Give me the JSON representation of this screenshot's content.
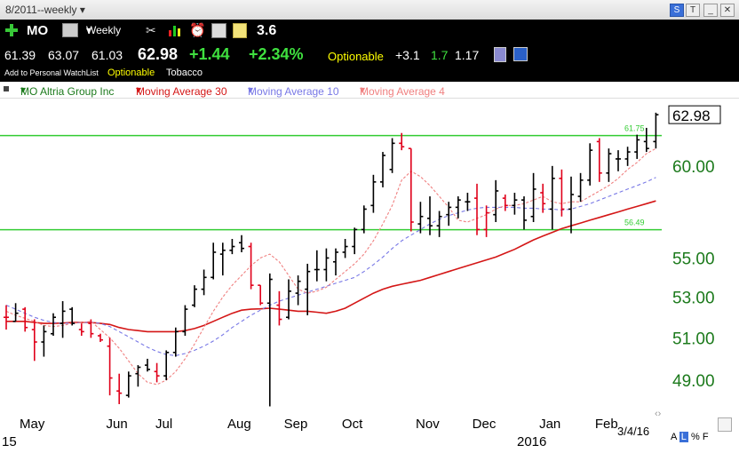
{
  "window": {
    "title": "8/2011--weekly"
  },
  "quote": {
    "symbol": "MO",
    "interval": "Weekly",
    "score": "3.6",
    "open": "61.39",
    "high": "63.07",
    "low": "61.03",
    "last": "62.98",
    "change": "+1.44",
    "change_pct": "+2.34%",
    "optionable": "Optionable",
    "rs1": "+3.1",
    "rs2": "1.7",
    "rs3": "1.17",
    "watchlist_link": "Add to Personal WatchList",
    "industry_tag": "Optionable",
    "industry": "Tobacco"
  },
  "legend": {
    "symbol_series": "MO Altria Group Inc",
    "ma30": "Moving Average 30",
    "ma10": "Moving Average 10",
    "ma4": "Moving Average 4"
  },
  "colors": {
    "up_bar": "#000000",
    "down_bar": "#e0001a",
    "ma30": "#d41616",
    "ma10": "#7878e6",
    "ma4": "#f08080",
    "support_lines": "#33cc33",
    "axis_text": "#1c7a1c"
  },
  "footer": {
    "date": "3/4/16",
    "scale_buttons": [
      "A",
      "L",
      "%",
      "F"
    ],
    "year_left": "15",
    "year_mid": "2016"
  },
  "chart_data": {
    "type": "ohlc",
    "title": "MO Altria Group Inc",
    "x_axis_labels": [
      "May",
      "Jun",
      "Jul",
      "Aug",
      "Sep",
      "Oct",
      "Nov",
      "Dec",
      "Jan",
      "Feb"
    ],
    "x_axis_label_week_index": [
      2,
      11,
      16,
      24,
      30,
      36,
      44,
      50,
      57,
      63
    ],
    "y_axis_ticks": [
      49.0,
      51.0,
      53.0,
      55.0,
      60.0
    ],
    "scale": "log",
    "ylim": [
      47.5,
      64.0
    ],
    "last_price_label": "62.98",
    "horizontal_lines": [
      {
        "label": "61.75",
        "value": 61.75
      },
      {
        "label": "56.49",
        "value": 56.49
      }
    ],
    "bars": [
      {
        "o": 52.0,
        "h": 52.6,
        "l": 51.4,
        "c": 52.0,
        "dir": "down"
      },
      {
        "o": 51.8,
        "h": 52.7,
        "l": 51.8,
        "c": 52.2,
        "dir": "up"
      },
      {
        "o": 52.4,
        "h": 52.5,
        "l": 51.3,
        "c": 51.5,
        "dir": "down"
      },
      {
        "o": 51.4,
        "h": 51.9,
        "l": 49.9,
        "c": 50.8,
        "dir": "down"
      },
      {
        "o": 50.8,
        "h": 51.6,
        "l": 50.1,
        "c": 51.3,
        "dir": "up"
      },
      {
        "o": 51.2,
        "h": 52.2,
        "l": 51.1,
        "c": 52.0,
        "dir": "up"
      },
      {
        "o": 51.7,
        "h": 52.8,
        "l": 51.0,
        "c": 52.3,
        "dir": "up"
      },
      {
        "o": 52.4,
        "h": 52.5,
        "l": 51.6,
        "c": 51.7,
        "dir": "up"
      },
      {
        "o": 51.4,
        "h": 51.7,
        "l": 51.1,
        "c": 51.3,
        "dir": "down"
      },
      {
        "o": 51.7,
        "h": 51.9,
        "l": 51.0,
        "c": 51.2,
        "dir": "down"
      },
      {
        "o": 51.1,
        "h": 51.2,
        "l": 50.8,
        "c": 50.9,
        "dir": "down"
      },
      {
        "o": 50.6,
        "h": 51.0,
        "l": 48.3,
        "c": 49.1,
        "dir": "down"
      },
      {
        "o": 48.5,
        "h": 49.3,
        "l": 47.9,
        "c": 48.4,
        "dir": "red"
      },
      {
        "o": 48.3,
        "h": 49.4,
        "l": 48.2,
        "c": 49.2,
        "dir": "up"
      },
      {
        "o": 49.3,
        "h": 49.7,
        "l": 48.7,
        "c": 49.6,
        "dir": "up"
      },
      {
        "o": 49.7,
        "h": 50.0,
        "l": 49.4,
        "c": 49.5,
        "dir": "up"
      },
      {
        "o": 49.4,
        "h": 49.8,
        "l": 48.9,
        "c": 49.2,
        "dir": "down"
      },
      {
        "o": 49.2,
        "h": 50.4,
        "l": 49.0,
        "c": 50.3,
        "dir": "up"
      },
      {
        "o": 50.3,
        "h": 51.5,
        "l": 50.1,
        "c": 51.3,
        "dir": "up"
      },
      {
        "o": 51.3,
        "h": 52.6,
        "l": 51.1,
        "c": 52.4,
        "dir": "up"
      },
      {
        "o": 52.6,
        "h": 53.6,
        "l": 52.5,
        "c": 53.4,
        "dir": "up"
      },
      {
        "o": 53.4,
        "h": 54.4,
        "l": 53.1,
        "c": 54.0,
        "dir": "up"
      },
      {
        "o": 54.0,
        "h": 55.8,
        "l": 53.9,
        "c": 55.3,
        "dir": "up"
      },
      {
        "o": 55.2,
        "h": 55.8,
        "l": 54.1,
        "c": 55.4,
        "dir": "up"
      },
      {
        "o": 55.4,
        "h": 56.0,
        "l": 55.2,
        "c": 55.6,
        "dir": "up"
      },
      {
        "o": 55.8,
        "h": 56.2,
        "l": 55.3,
        "c": 55.5,
        "dir": "up"
      },
      {
        "o": 55.6,
        "h": 55.8,
        "l": 53.4,
        "c": 53.6,
        "dir": "down"
      },
      {
        "o": 53.6,
        "h": 53.6,
        "l": 52.6,
        "c": 52.7,
        "dir": "down"
      },
      {
        "o": 52.7,
        "h": 54.2,
        "l": 47.8,
        "c": 53.9,
        "dir": "up"
      },
      {
        "o": 52.6,
        "h": 53.3,
        "l": 51.6,
        "c": 51.9,
        "dir": "down"
      },
      {
        "o": 52.0,
        "h": 53.9,
        "l": 51.9,
        "c": 53.3,
        "dir": "up"
      },
      {
        "o": 53.2,
        "h": 54.1,
        "l": 52.6,
        "c": 53.8,
        "dir": "up"
      },
      {
        "o": 53.4,
        "h": 54.7,
        "l": 52.1,
        "c": 54.3,
        "dir": "up"
      },
      {
        "o": 54.4,
        "h": 55.4,
        "l": 53.8,
        "c": 54.4,
        "dir": "up"
      },
      {
        "o": 54.4,
        "h": 55.5,
        "l": 53.8,
        "c": 55.0,
        "dir": "up"
      },
      {
        "o": 54.8,
        "h": 55.5,
        "l": 54.1,
        "c": 55.3,
        "dir": "up"
      },
      {
        "o": 55.3,
        "h": 56.0,
        "l": 55.0,
        "c": 55.6,
        "dir": "up"
      },
      {
        "o": 55.6,
        "h": 56.6,
        "l": 55.2,
        "c": 56.5,
        "dir": "up"
      },
      {
        "o": 56.5,
        "h": 57.8,
        "l": 56.3,
        "c": 57.6,
        "dir": "up"
      },
      {
        "o": 57.8,
        "h": 59.5,
        "l": 57.4,
        "c": 59.1,
        "dir": "up"
      },
      {
        "o": 59.1,
        "h": 60.8,
        "l": 58.8,
        "c": 60.6,
        "dir": "up"
      },
      {
        "o": 59.8,
        "h": 61.6,
        "l": 59.6,
        "c": 61.3,
        "dir": "up"
      },
      {
        "o": 61.3,
        "h": 61.9,
        "l": 60.9,
        "c": 61.1,
        "dir": "red"
      },
      {
        "o": 61.0,
        "h": 61.0,
        "l": 56.4,
        "c": 56.9,
        "dir": "down"
      },
      {
        "o": 56.8,
        "h": 58.0,
        "l": 56.3,
        "c": 57.2,
        "dir": "up"
      },
      {
        "o": 57.1,
        "h": 58.3,
        "l": 56.2,
        "c": 56.7,
        "dir": "up"
      },
      {
        "o": 56.7,
        "h": 57.5,
        "l": 56.1,
        "c": 57.2,
        "dir": "up"
      },
      {
        "o": 57.3,
        "h": 58.0,
        "l": 56.7,
        "c": 57.7,
        "dir": "up"
      },
      {
        "o": 57.7,
        "h": 58.3,
        "l": 57.1,
        "c": 58.1,
        "dir": "up"
      },
      {
        "o": 58.0,
        "h": 58.5,
        "l": 57.5,
        "c": 58.0,
        "dir": "up"
      },
      {
        "o": 58.2,
        "h": 59.0,
        "l": 56.2,
        "c": 56.5,
        "dir": "down"
      },
      {
        "o": 56.5,
        "h": 57.8,
        "l": 56.1,
        "c": 57.4,
        "dir": "down"
      },
      {
        "o": 57.3,
        "h": 59.2,
        "l": 56.9,
        "c": 58.6,
        "dir": "up"
      },
      {
        "o": 58.2,
        "h": 58.4,
        "l": 57.5,
        "c": 57.8,
        "dir": "down"
      },
      {
        "o": 57.8,
        "h": 58.5,
        "l": 57.3,
        "c": 58.1,
        "dir": "up"
      },
      {
        "o": 58.1,
        "h": 58.3,
        "l": 56.5,
        "c": 57.0,
        "dir": "up"
      },
      {
        "o": 57.2,
        "h": 59.6,
        "l": 56.9,
        "c": 58.7,
        "dir": "up"
      },
      {
        "o": 58.5,
        "h": 59.0,
        "l": 57.4,
        "c": 57.9,
        "dir": "down"
      },
      {
        "o": 57.6,
        "h": 60.0,
        "l": 56.5,
        "c": 59.3,
        "dir": "up"
      },
      {
        "o": 59.3,
        "h": 59.8,
        "l": 57.2,
        "c": 57.6,
        "dir": "red"
      },
      {
        "o": 57.6,
        "h": 59.4,
        "l": 56.3,
        "c": 58.4,
        "dir": "up"
      },
      {
        "o": 58.3,
        "h": 59.6,
        "l": 58.0,
        "c": 59.2,
        "dir": "up"
      },
      {
        "o": 59.2,
        "h": 61.3,
        "l": 58.9,
        "c": 60.9,
        "dir": "up"
      },
      {
        "o": 61.4,
        "h": 61.6,
        "l": 59.1,
        "c": 59.6,
        "dir": "down"
      },
      {
        "o": 59.6,
        "h": 61.0,
        "l": 59.1,
        "c": 60.7,
        "dir": "up"
      },
      {
        "o": 60.4,
        "h": 60.9,
        "l": 59.7,
        "c": 60.4,
        "dir": "up"
      },
      {
        "o": 60.4,
        "h": 61.1,
        "l": 60.0,
        "c": 60.8,
        "dir": "up"
      },
      {
        "o": 60.8,
        "h": 61.8,
        "l": 60.4,
        "c": 61.5,
        "dir": "up"
      },
      {
        "o": 61.4,
        "h": 62.2,
        "l": 60.8,
        "c": 61.0,
        "dir": "up"
      },
      {
        "o": 61.4,
        "h": 63.1,
        "l": 61.0,
        "c": 62.98,
        "dir": "up"
      }
    ],
    "ma30": [
      51.8,
      51.8,
      51.8,
      51.75,
      51.7,
      51.7,
      51.72,
      51.75,
      51.75,
      51.75,
      51.7,
      51.65,
      51.5,
      51.4,
      51.35,
      51.3,
      51.3,
      51.3,
      51.3,
      51.35,
      51.45,
      51.6,
      51.8,
      52.0,
      52.2,
      52.35,
      52.4,
      52.42,
      52.45,
      52.4,
      52.35,
      52.3,
      52.3,
      52.25,
      52.2,
      52.3,
      52.45,
      52.7,
      52.95,
      53.2,
      53.4,
      53.55,
      53.65,
      53.75,
      53.85,
      54.0,
      54.15,
      54.3,
      54.45,
      54.6,
      54.75,
      54.9,
      55.05,
      55.25,
      55.45,
      55.7,
      55.95,
      56.15,
      56.35,
      56.55,
      56.7,
      56.85,
      57.0,
      57.15,
      57.3,
      57.45,
      57.6,
      57.75,
      57.9,
      58.05
    ],
    "ma10": [
      52.6,
      52.4,
      52.2,
      52.0,
      51.85,
      51.75,
      51.7,
      51.72,
      51.74,
      51.76,
      51.7,
      51.55,
      51.3,
      51.05,
      50.8,
      50.55,
      50.35,
      50.2,
      50.15,
      50.25,
      50.4,
      50.6,
      50.85,
      51.15,
      51.5,
      51.8,
      52.1,
      52.35,
      52.6,
      52.8,
      52.95,
      53.1,
      53.25,
      53.4,
      53.55,
      53.7,
      53.85,
      54.0,
      54.3,
      54.65,
      55.05,
      55.5,
      55.9,
      56.2,
      56.5,
      56.8,
      57.05,
      57.25,
      57.4,
      57.55,
      57.65,
      57.7,
      57.7,
      57.7,
      57.7,
      57.65,
      57.65,
      57.6,
      57.6,
      57.55,
      57.6,
      57.75,
      57.9,
      58.1,
      58.3,
      58.5,
      58.7,
      58.9,
      59.1,
      59.35
    ],
    "ma4": [
      52.3,
      52.1,
      51.95,
      51.8,
      51.6,
      51.55,
      51.6,
      51.7,
      51.75,
      51.8,
      51.4,
      51.0,
      50.5,
      49.9,
      49.3,
      48.9,
      48.8,
      49.0,
      49.4,
      50.0,
      50.7,
      51.5,
      52.3,
      53.0,
      53.6,
      54.1,
      54.6,
      55.0,
      55.2,
      54.8,
      54.1,
      53.4,
      53.2,
      53.3,
      53.5,
      53.9,
      54.3,
      54.7,
      55.2,
      55.9,
      56.8,
      57.8,
      59.2,
      59.7,
      59.4,
      58.9,
      58.3,
      57.7,
      57.0,
      56.9,
      57.1,
      57.3,
      57.6,
      57.8,
      57.8,
      57.9,
      58.1,
      58.3,
      58.0,
      57.9,
      58.0,
      58.0,
      58.3,
      58.6,
      58.9,
      59.3,
      59.8,
      60.2,
      60.7,
      61.0
    ]
  }
}
